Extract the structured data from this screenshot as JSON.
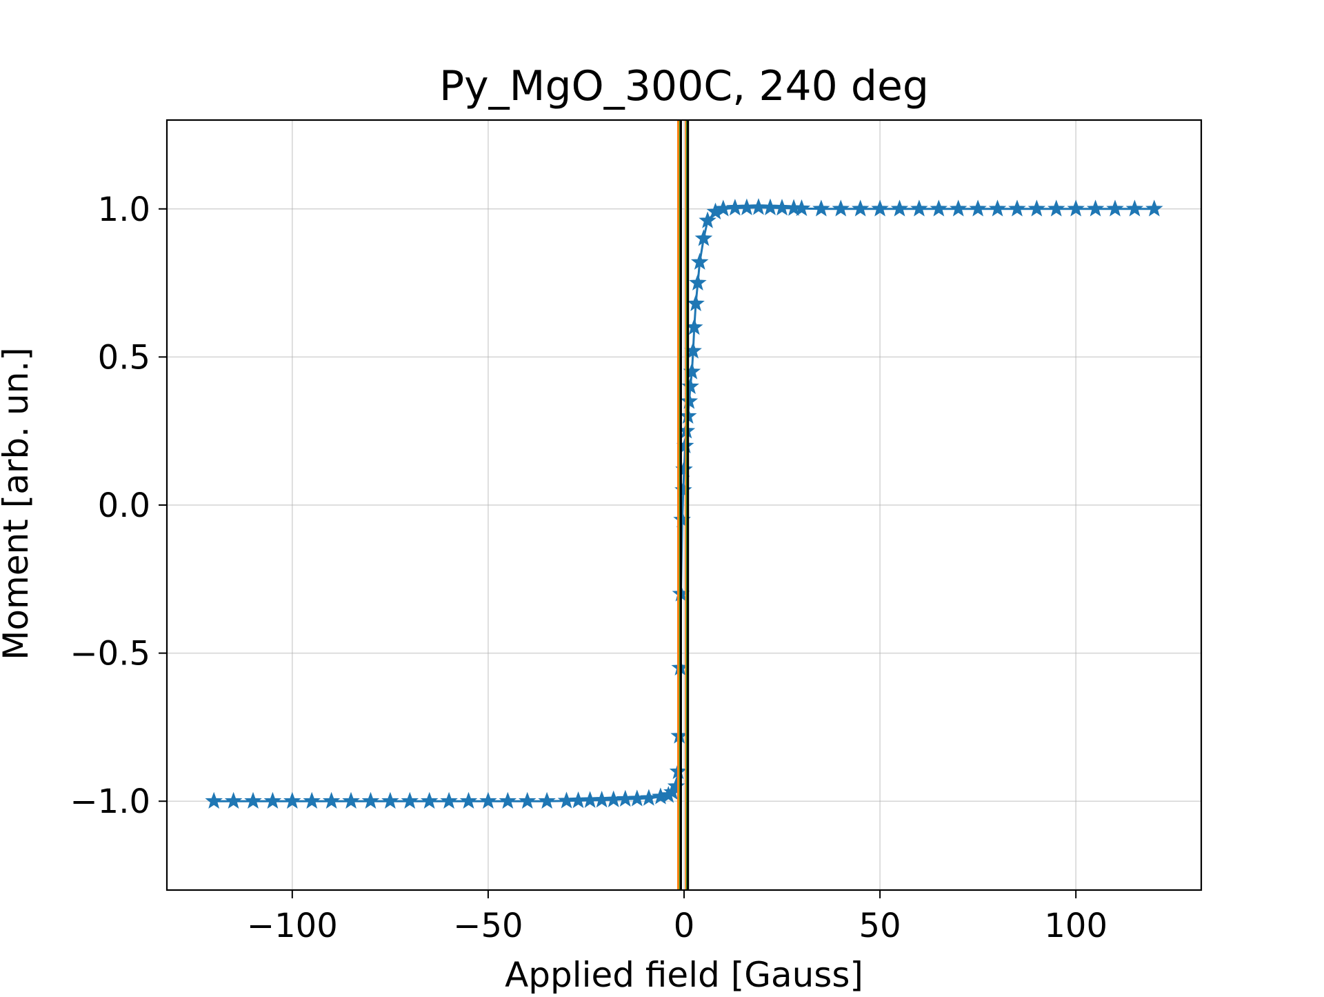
{
  "chart_data": {
    "type": "scatter",
    "title": "Py_MgO_300C, 240 deg",
    "xlabel": "Applied field [Gauss]",
    "ylabel": "Moment [arb. un.]",
    "xlim": [
      -132,
      132
    ],
    "ylim": [
      -1.3,
      1.3
    ],
    "xticks": [
      -100,
      -50,
      0,
      50,
      100
    ],
    "xtick_labels": [
      "−100",
      "−50",
      "0",
      "50",
      "100"
    ],
    "yticks": [
      -1.0,
      -0.5,
      0.0,
      0.5,
      1.0
    ],
    "ytick_labels": [
      "−1.0",
      "−0.5",
      "0.0",
      "0.5",
      "1.0"
    ],
    "grid": true,
    "marker": "star",
    "colors": {
      "series": "#1f77b4",
      "vline_orange": "#ff7f0e",
      "vline_green": "#2ca02c",
      "vline_black": "#000000",
      "grid": "#b0b0b0"
    },
    "series": [
      {
        "x": [
          -120,
          -115,
          -110,
          -105,
          -100,
          -95,
          -90,
          -85,
          -80,
          -75,
          -70,
          -65,
          -60,
          -55,
          -50,
          -45,
          -40,
          -35,
          -30,
          -27,
          -24,
          -21,
          -18,
          -15,
          -12,
          -9,
          -6,
          -4,
          -3,
          -2,
          -1.5,
          -1.2,
          -1,
          -0.8,
          -0.5,
          -0.2,
          0,
          0.3,
          0.6,
          1,
          1.3,
          1.6,
          2,
          2.3,
          2.6,
          3,
          3.5,
          4,
          5,
          6,
          8,
          10,
          13,
          16,
          19,
          22,
          25,
          28,
          30,
          35,
          40,
          45,
          50,
          55,
          60,
          65,
          70,
          75,
          80,
          85,
          90,
          95,
          100,
          105,
          110,
          115,
          120
        ],
        "y": [
          -1.0,
          -1.0,
          -1.0,
          -1.0,
          -1.0,
          -1.0,
          -1.0,
          -1.0,
          -1.0,
          -1.0,
          -1.0,
          -1.0,
          -1.0,
          -1.0,
          -1.0,
          -1.0,
          -1.0,
          -1.0,
          -0.999,
          -0.998,
          -0.997,
          -0.996,
          -0.995,
          -0.993,
          -0.992,
          -0.99,
          -0.985,
          -0.98,
          -0.97,
          -0.95,
          -0.9,
          -0.78,
          -0.55,
          -0.3,
          -0.05,
          0.05,
          0.12,
          0.2,
          0.25,
          0.3,
          0.35,
          0.4,
          0.45,
          0.52,
          0.6,
          0.68,
          0.75,
          0.82,
          0.9,
          0.96,
          0.99,
          1.0,
          1.003,
          1.004,
          1.005,
          1.004,
          1.003,
          1.002,
          1.001,
          1.0,
          1.0,
          1.0,
          1.0,
          1.0,
          1.0,
          1.0,
          1.0,
          1.0,
          1.0,
          1.0,
          1.0,
          1.0,
          1.0,
          1.0,
          1.0,
          1.0,
          1.0
        ]
      }
    ],
    "vlines": [
      {
        "x": -1.5,
        "color": "#ff7f0e"
      },
      {
        "x": -1.0,
        "color": "#2ca02c"
      },
      {
        "x": -0.8,
        "color": "#000000"
      },
      {
        "x": 0.5,
        "color": "#ff7f0e"
      },
      {
        "x": 0.8,
        "color": "#2ca02c"
      },
      {
        "x": 1.0,
        "color": "#000000"
      }
    ]
  }
}
